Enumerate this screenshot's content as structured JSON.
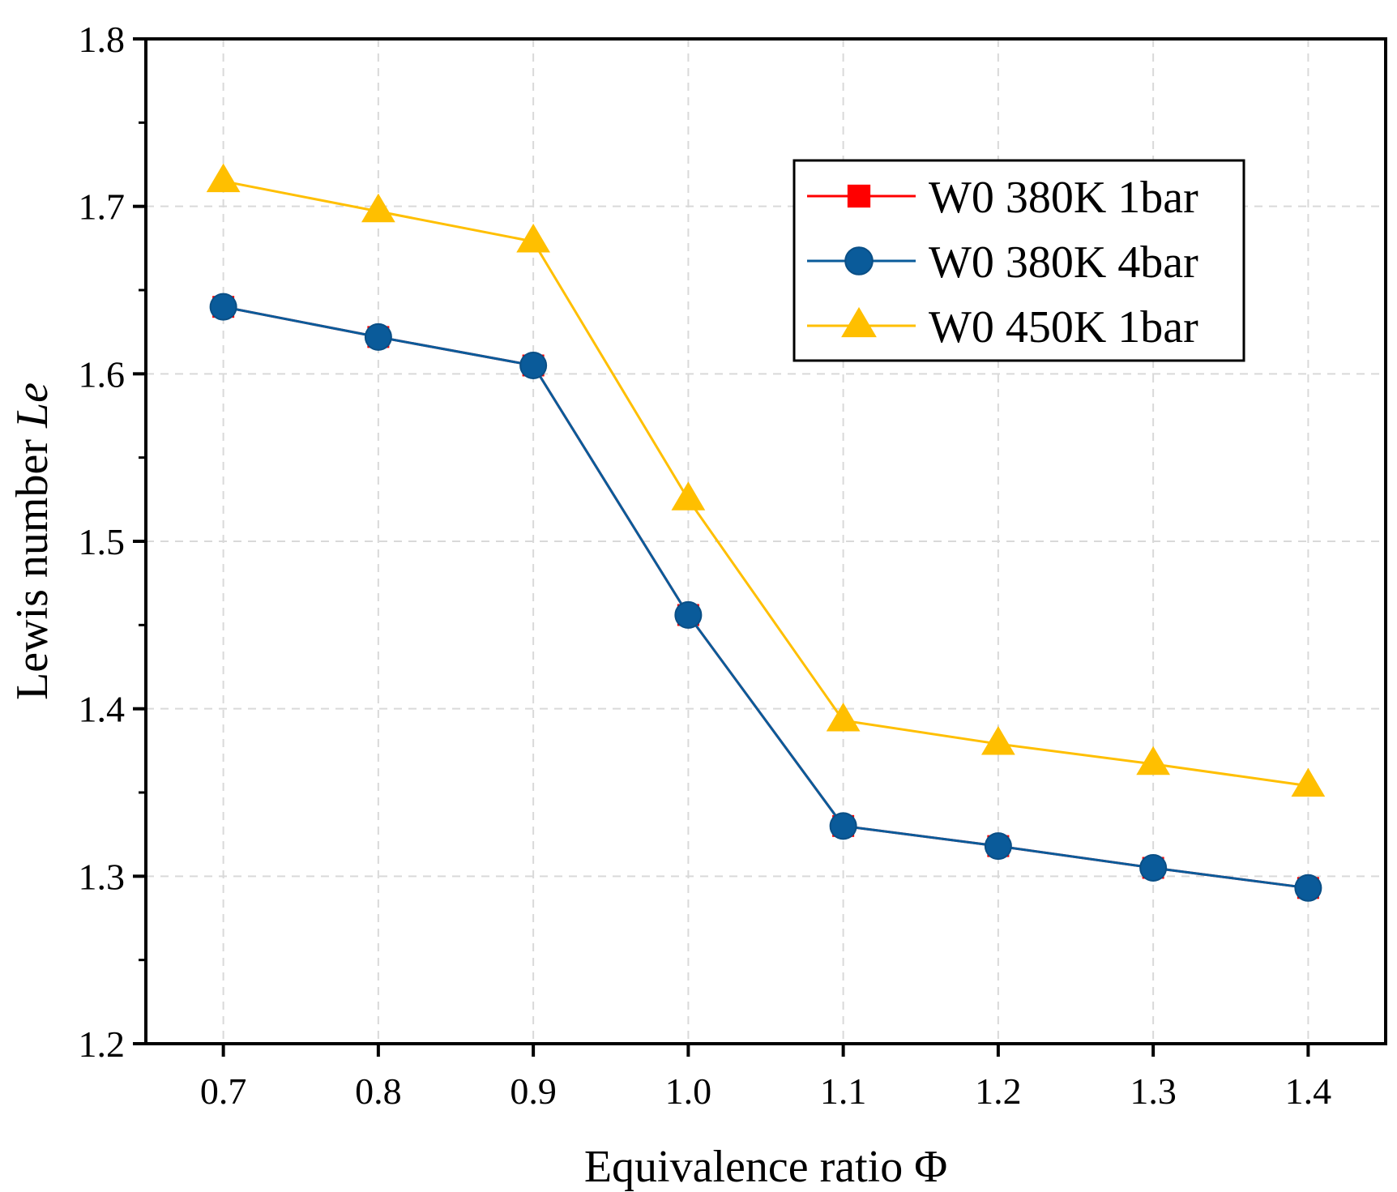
{
  "chart_data": {
    "type": "line",
    "title": "",
    "xlabel": "Equivalence ratio Φ",
    "ylabel_main": "Lewis number ",
    "ylabel_italic": "Le",
    "x": [
      0.7,
      0.8,
      0.9,
      1.0,
      1.1,
      1.2,
      1.3,
      1.4
    ],
    "x_tick_labels": [
      "0.7",
      "0.8",
      "0.9",
      "1.0",
      "1.1",
      "1.2",
      "1.3",
      "1.4"
    ],
    "xlim": [
      0.65,
      1.45
    ],
    "ylim": [
      1.2,
      1.8
    ],
    "y_ticks": [
      1.2,
      1.3,
      1.4,
      1.5,
      1.6,
      1.7,
      1.8
    ],
    "y_tick_labels": [
      "1.2",
      "1.3",
      "1.4",
      "1.5",
      "1.6",
      "1.7",
      "1.8"
    ],
    "grid": true,
    "legend_position": "top-right",
    "series": [
      {
        "name": "W0 380K 1bar",
        "marker": "square",
        "color": "#ff0000",
        "values": [
          1.64,
          1.622,
          1.605,
          1.456,
          1.33,
          1.318,
          1.305,
          1.293
        ]
      },
      {
        "name": "W0 380K 4bar",
        "marker": "circle",
        "color": "#0a5b9a",
        "values": [
          1.64,
          1.622,
          1.605,
          1.456,
          1.33,
          1.318,
          1.305,
          1.293
        ]
      },
      {
        "name": "W0 450K 1bar",
        "marker": "triangle",
        "color": "#ffbf00",
        "values": [
          1.715,
          1.697,
          1.679,
          1.525,
          1.393,
          1.379,
          1.367,
          1.354
        ]
      }
    ]
  }
}
